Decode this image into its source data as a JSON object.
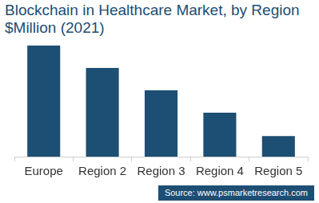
{
  "chart_data": {
    "type": "bar",
    "title": "Blockchain in Healthcare Market, by Region",
    "subtitle": "$Million (2021)",
    "categories": [
      "Europe",
      "Region 2",
      "Region 3",
      "Region 4",
      "Region 5"
    ],
    "values": [
      129,
      103,
      77,
      51,
      24
    ],
    "color": "#1d4e73",
    "ylim": [
      0,
      129
    ],
    "grid": false,
    "tick_labels": "x",
    "annotations": [
      "Source: www.psmarketresearch.com"
    ]
  }
}
